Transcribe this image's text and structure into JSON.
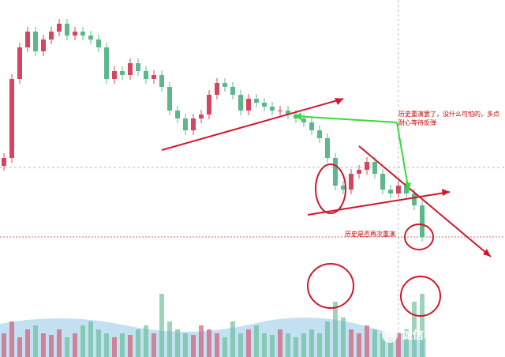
{
  "chart_data": {
    "type": "candlestick",
    "open": [
      110,
      120,
      220,
      260,
      280,
      255,
      270,
      280,
      290,
      275,
      280,
      275,
      270,
      260,
      220,
      230,
      225,
      240,
      230,
      220,
      225,
      210,
      180,
      170,
      155,
      170,
      175,
      200,
      215,
      210,
      200,
      180,
      195,
      190,
      185,
      180,
      180,
      175,
      170,
      165,
      155,
      145,
      120,
      85,
      80,
      100,
      105,
      115,
      100,
      80,
      75,
      85,
      75,
      60
    ],
    "high": [
      126,
      226,
      266,
      286,
      286,
      276,
      286,
      296,
      296,
      286,
      286,
      281,
      276,
      266,
      236,
      236,
      246,
      246,
      236,
      231,
      231,
      216,
      186,
      176,
      176,
      181,
      206,
      221,
      221,
      216,
      206,
      201,
      201,
      196,
      191,
      186,
      186,
      181,
      176,
      171,
      161,
      151,
      126,
      91,
      106,
      111,
      121,
      121,
      106,
      86,
      91,
      91,
      81,
      66
    ],
    "low": [
      104,
      114,
      214,
      254,
      249,
      249,
      264,
      274,
      269,
      269,
      269,
      264,
      254,
      214,
      214,
      219,
      219,
      224,
      214,
      214,
      204,
      174,
      164,
      149,
      149,
      164,
      169,
      194,
      204,
      194,
      174,
      174,
      184,
      179,
      174,
      174,
      169,
      164,
      159,
      149,
      139,
      114,
      79,
      74,
      74,
      94,
      99,
      94,
      74,
      69,
      69,
      69,
      54,
      14
    ],
    "close": [
      120,
      220,
      260,
      280,
      255,
      270,
      280,
      290,
      275,
      280,
      275,
      270,
      260,
      220,
      230,
      225,
      240,
      230,
      220,
      225,
      210,
      180,
      170,
      155,
      170,
      175,
      200,
      215,
      210,
      200,
      180,
      195,
      190,
      185,
      180,
      180,
      175,
      170,
      165,
      155,
      145,
      120,
      85,
      80,
      100,
      105,
      115,
      100,
      80,
      75,
      85,
      75,
      60,
      20
    ],
    "volume": [
      30,
      45,
      25,
      35,
      40,
      30,
      28,
      35,
      25,
      30,
      40,
      45,
      35,
      30,
      25,
      30,
      28,
      35,
      40,
      30,
      80,
      45,
      35,
      30,
      28,
      40,
      35,
      30,
      25,
      45,
      30,
      35,
      40,
      30,
      28,
      35,
      30,
      25,
      30,
      35,
      30,
      45,
      70,
      50,
      35,
      30,
      40,
      35,
      30,
      25,
      30,
      35,
      70,
      80
    ],
    "ylim": [
      0,
      320
    ],
    "volume_ylim": [
      0,
      100
    ],
    "up_color": "#d6455f",
    "down_color": "#5cb88a",
    "annotations": [
      "历史重演罢了，没什么可怕的，多点",
      "耐心等待反弹",
      "历史是否再次重演"
    ],
    "watermark": "诚信心灵语录二"
  }
}
